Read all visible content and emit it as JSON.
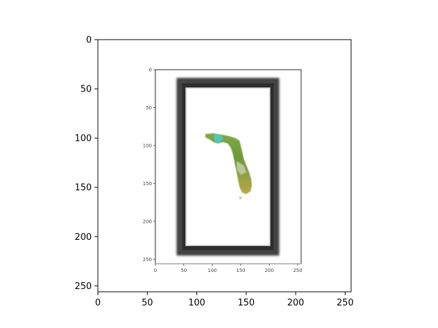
{
  "chart_data": {
    "type": "image",
    "title": "",
    "xlabel": "",
    "ylabel": "",
    "xlim": [
      0,
      256
    ],
    "ylim": [
      256,
      0
    ],
    "x_ticks": [
      0,
      50,
      100,
      150,
      200,
      250
    ],
    "y_ticks": [
      0,
      50,
      100,
      150,
      200,
      250
    ],
    "x_tick_labels": [
      "0",
      "50",
      "100",
      "150",
      "200",
      "250"
    ],
    "y_tick_labels": [
      "0",
      "50",
      "100",
      "150",
      "200",
      "250"
    ],
    "grid": false,
    "legend": "none",
    "inner_image": {
      "description_visible": "nested plot screenshot with dark frame and green map shape",
      "x_ticks": [
        0,
        50,
        100,
        150,
        200,
        250
      ],
      "y_ticks": [
        0,
        50,
        100,
        150,
        200,
        250
      ],
      "x_tick_labels": [
        "0",
        "50",
        "100",
        "150",
        "200",
        "250"
      ],
      "y_tick_labels": [
        "0",
        "50",
        "100",
        "150",
        "200",
        "250"
      ],
      "xlim": [
        0,
        256
      ],
      "ylim": [
        256,
        0
      ],
      "frame_color": "#3a3a3a",
      "map_colors": [
        "#8aa640",
        "#6f9a3a",
        "#4fc8c8",
        "#b5a545"
      ]
    }
  }
}
